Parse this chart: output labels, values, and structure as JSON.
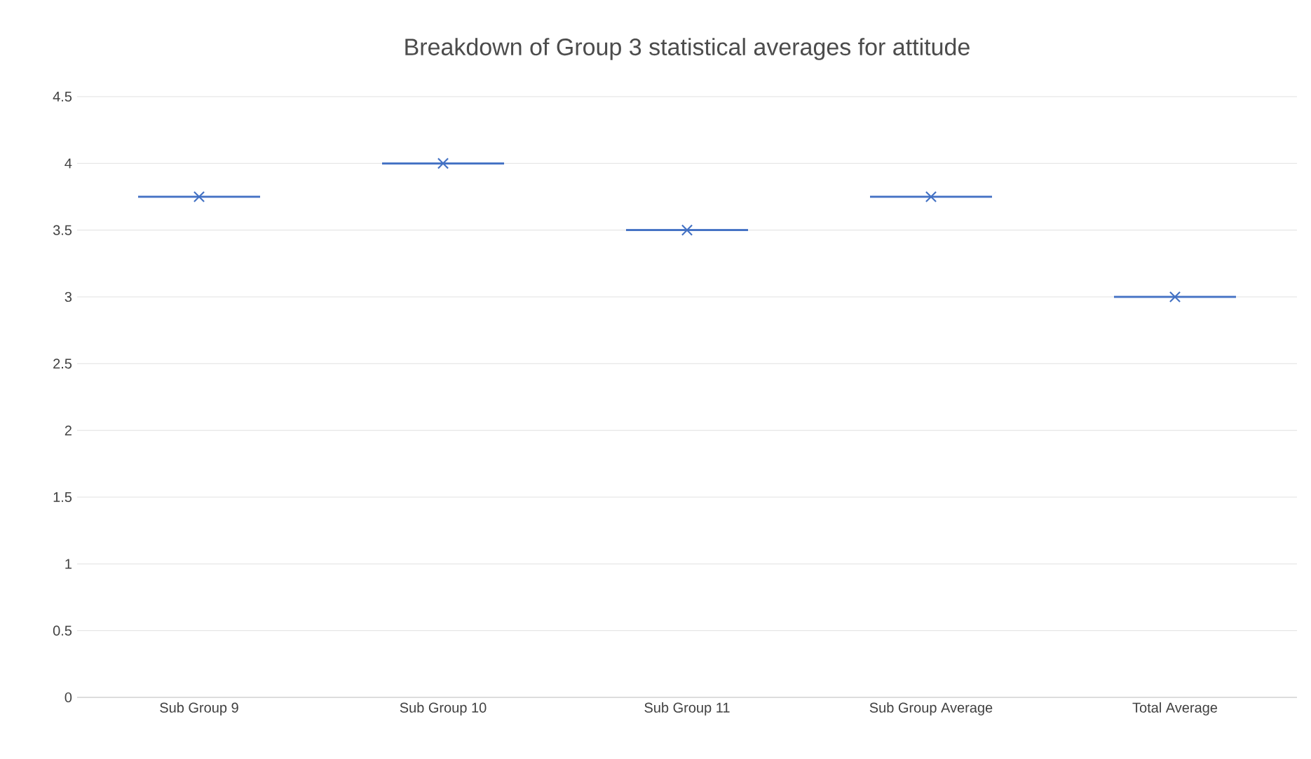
{
  "chart_data": {
    "type": "box",
    "title": "Breakdown of Group 3 statistical averages for attitude",
    "categories": [
      "Sub Group 9",
      "Sub Group 10",
      "Sub Group 11",
      "Sub Group Average",
      "Total Average"
    ],
    "boxes": [
      {
        "low": 3.75,
        "q1": 3.75,
        "median": 3.75,
        "q3": 3.75,
        "high": 3.75,
        "mean": 3.75
      },
      {
        "low": 4,
        "q1": 4,
        "median": 4,
        "q3": 4,
        "high": 4,
        "mean": 4
      },
      {
        "low": 3.5,
        "q1": 3.5,
        "median": 3.5,
        "q3": 3.5,
        "high": 3.5,
        "mean": 3.5
      },
      {
        "low": 3.75,
        "q1": 3.75,
        "median": 3.75,
        "q3": 3.75,
        "high": 3.75,
        "mean": 3.75
      },
      {
        "low": 3,
        "q1": 3,
        "median": 3,
        "q3": 3,
        "high": 3,
        "mean": 3
      }
    ],
    "color": "#4472c4",
    "marker": "cross",
    "grid": "y",
    "ylim": [
      0,
      4.5
    ],
    "yticks": [
      0,
      0.5,
      1,
      1.5,
      2,
      2.5,
      3,
      3.5,
      4,
      4.5
    ]
  }
}
